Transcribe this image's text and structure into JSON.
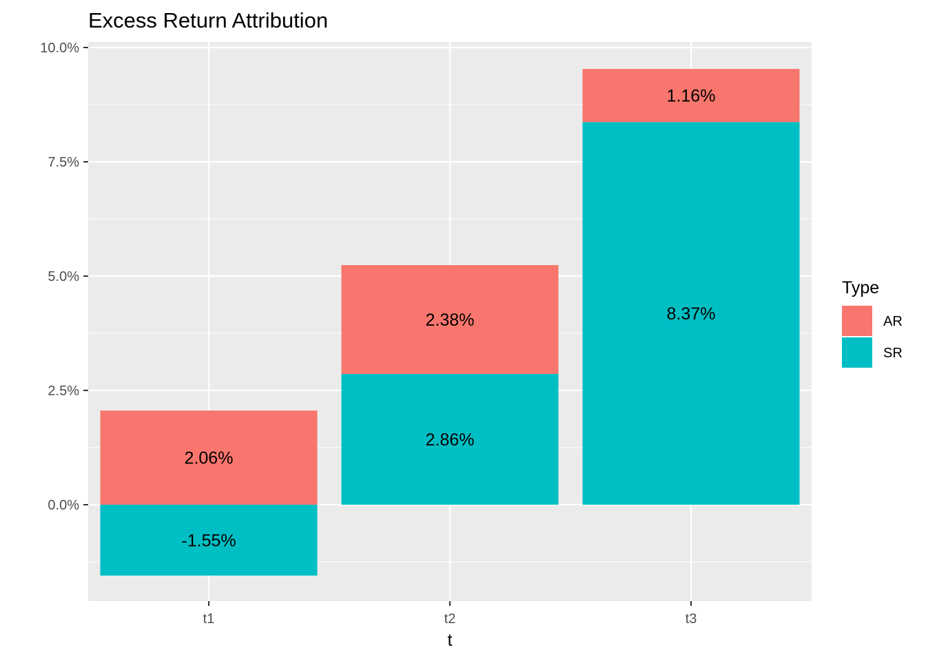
{
  "chart_data": {
    "type": "bar",
    "stacked": true,
    "title": "Excess Return Attribution",
    "xlabel": "t",
    "ylabel": "",
    "categories": [
      "t1",
      "t2",
      "t3"
    ],
    "series": [
      {
        "name": "SR",
        "values": [
          -1.55,
          2.86,
          8.37
        ],
        "labels": [
          "-1.55%",
          "2.86%",
          "8.37%"
        ],
        "color": "#00BFC4"
      },
      {
        "name": "AR",
        "values": [
          2.06,
          2.38,
          1.16
        ],
        "labels": [
          "2.06%",
          "2.38%",
          "1.16%"
        ],
        "color": "#F8766D"
      }
    ],
    "ylim": [
      -2.1,
      10.0
    ],
    "yticks": [
      0,
      2.5,
      5,
      7.5,
      10
    ],
    "ytick_labels": [
      "0.0%",
      "2.5%",
      "5.0%",
      "7.5%",
      "10.0%"
    ],
    "grid": true,
    "panel_color": "#EBEBEB",
    "legend": {
      "title": "Type",
      "position": "right",
      "items": [
        {
          "name": "AR",
          "color": "#F8766D"
        },
        {
          "name": "SR",
          "color": "#00BFC4"
        }
      ]
    }
  }
}
